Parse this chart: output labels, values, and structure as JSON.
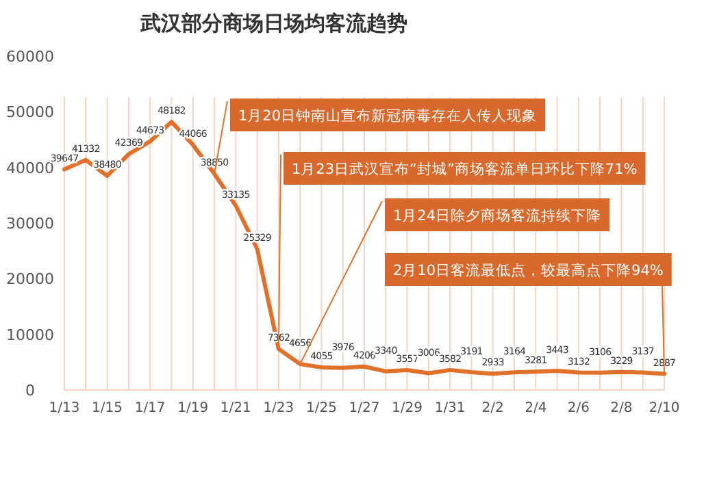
{
  "chart_data": {
    "type": "line",
    "title": "武汉部分商场日场均客流趋势",
    "x": [
      "--01-13",
      "--01-14",
      "--01-15",
      "--01-16",
      "--01-17",
      "--01-18",
      "--01-19",
      "--01-20",
      "--01-21",
      "--01-22",
      "--01-23",
      "--01-24",
      "--01-25",
      "--01-26",
      "--01-27",
      "--01-28",
      "--01-29",
      "--01-30",
      "--01-31",
      "--02-01",
      "--02-02",
      "--02-03",
      "--02-04",
      "--02-05",
      "--02-06",
      "--02-07",
      "--02-08",
      "--02-09",
      "--02-10"
    ],
    "series": [
      {
        "color": "#e0702a",
        "values": [
          39647,
          41332,
          38480,
          42369,
          44673,
          48182,
          44066,
          38850,
          33135,
          25329,
          7362,
          4656,
          4055,
          3976,
          4206,
          3340,
          3557,
          3006,
          3582,
          3191,
          2933,
          3164,
          3281,
          3443,
          3132,
          3106,
          3229,
          3137,
          2887
        ]
      }
    ],
    "xlim": [
      "--01-13",
      "--02-10"
    ],
    "xticks": [
      {
        "value": "--01-13",
        "label": "1/13"
      },
      {
        "value": "--01-14",
        "label": null
      },
      {
        "value": "--01-15",
        "label": "1/15"
      },
      {
        "value": "--01-16",
        "label": null
      },
      {
        "value": "--01-17",
        "label": "1/17"
      },
      {
        "value": "--01-18",
        "label": null
      },
      {
        "value": "--01-19",
        "label": "1/19"
      },
      {
        "value": "--01-20",
        "label": null
      },
      {
        "value": "--01-21",
        "label": "1/21"
      },
      {
        "value": "--01-22",
        "label": null
      },
      {
        "value": "--01-23",
        "label": "1/23"
      },
      {
        "value": "--01-24",
        "label": null
      },
      {
        "value": "--01-25",
        "label": "1/25"
      },
      {
        "value": "--01-26",
        "label": null
      },
      {
        "value": "--01-27",
        "label": "1/27"
      },
      {
        "value": "--01-28",
        "label": null
      },
      {
        "value": "--01-29",
        "label": "1/29"
      },
      {
        "value": "--01-30",
        "label": null
      },
      {
        "value": "--01-31",
        "label": "1/31"
      },
      {
        "value": "--02-01",
        "label": null
      },
      {
        "value": "--02-02",
        "label": "2/2"
      },
      {
        "value": "--02-03",
        "label": null
      },
      {
        "value": "--02-04",
        "label": "2/4"
      },
      {
        "value": "--02-05",
        "label": null
      },
      {
        "value": "--02-06",
        "label": "2/6"
      },
      {
        "value": "--02-07",
        "label": null
      },
      {
        "value": "--02-08",
        "label": "2/8"
      },
      {
        "value": "--02-09",
        "label": null
      },
      {
        "value": "--02-10",
        "label": "2/10"
      }
    ],
    "ylim": [
      0,
      60000
    ],
    "yticks": [
      0,
      10000,
      20000,
      30000,
      40000,
      50000,
      60000
    ],
    "grid": "x",
    "data_labels": true,
    "annotations": [
      {
        "text": "1月20日钟南山宣布新冠病毒存在人传人现象",
        "x": "--01-20",
        "y": 38850
      },
      {
        "text": "1月23日武汉宣布“封城”商场客流单日环比下降71%",
        "x": "--01-23",
        "y": 7362
      },
      {
        "text": "1月24日除夕商场客流持续下降",
        "x": "--01-24",
        "y": 4656
      },
      {
        "text": "2月10日客流最低点，较最高点下降94%",
        "x": "--02-10",
        "y": 2887
      }
    ]
  }
}
